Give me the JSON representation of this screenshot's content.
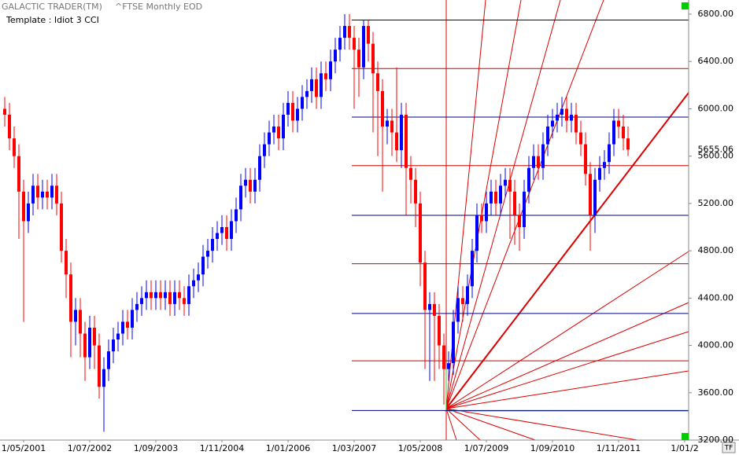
{
  "chart_data": {
    "type": "candlestick",
    "title": "GALACTIC TRADER(TM)",
    "subtitle": "^FTSE Monthly EOD",
    "template": "Template : Idiot 3 CCI",
    "button": "TF",
    "last_price": 5655.06,
    "up_color": "#0000ff",
    "down_color": "#ff0000",
    "ylim": [
      3200,
      6800
    ],
    "yticks": [
      {
        "value": 3200,
        "label": "3200.00"
      },
      {
        "value": 3600,
        "label": "3600.00"
      },
      {
        "value": 4000,
        "label": "4000.00"
      },
      {
        "value": 4400,
        "label": "4400.00"
      },
      {
        "value": 4800,
        "label": "4800.00"
      },
      {
        "value": 5200,
        "label": "5200.00"
      },
      {
        "value": 5600,
        "label": "5600.00"
      },
      {
        "value": 6000,
        "label": "6000.00"
      },
      {
        "value": 6400,
        "label": "6400.00"
      },
      {
        "value": 6800,
        "label": "6800.00"
      }
    ],
    "xticks": [
      {
        "value": 5,
        "label": "1/05/2001"
      },
      {
        "value": 19,
        "label": "1/07/2002"
      },
      {
        "value": 33,
        "label": "1/09/2003"
      },
      {
        "value": 47,
        "label": "1/11/2004"
      },
      {
        "value": 61,
        "label": "1/01/2006"
      },
      {
        "value": 75,
        "label": "1/03/2007"
      },
      {
        "value": 89,
        "label": "1/05/2008"
      },
      {
        "value": 103,
        "label": "1/07/2009"
      },
      {
        "value": 117,
        "label": "1/09/2010"
      },
      {
        "value": 131,
        "label": "1/11/2011"
      },
      {
        "value": 145,
        "label": "1/01/2"
      }
    ],
    "levels": [
      {
        "value": 6750,
        "color": "#000080"
      },
      {
        "value": 6340,
        "color": "#cc0000"
      },
      {
        "value": 5930,
        "color": "#000080"
      },
      {
        "value": 5520,
        "color": "#cc0000"
      },
      {
        "value": 5100,
        "color": "#000080"
      },
      {
        "value": 4690,
        "color": "#cc0000"
      },
      {
        "value": 4270,
        "color": "#000080"
      },
      {
        "value": 3870,
        "color": "#cc0000"
      },
      {
        "value": 3450,
        "color": "#000080"
      }
    ],
    "open": [
      6000,
      5950,
      5750,
      5600,
      5300,
      5050,
      5200,
      5350,
      5250,
      5300,
      5250,
      5350,
      5200,
      4800,
      4600,
      4200,
      4300,
      4100,
      3900,
      4150,
      4000,
      3650,
      3800,
      3950,
      4050,
      4100,
      4200,
      4150,
      4300,
      4350,
      4400,
      4450,
      4400,
      4450,
      4400,
      4450,
      4350,
      4450,
      4400,
      4350,
      4500,
      4550,
      4600,
      4750,
      4800,
      4900,
      4950,
      5000,
      4900,
      5050,
      5150,
      5350,
      5400,
      5300,
      5400,
      5600,
      5700,
      5800,
      5850,
      5750,
      5950,
      6050,
      5900,
      6000,
      6100,
      6150,
      6250,
      6100,
      6300,
      6250,
      6400,
      6500,
      6600,
      6700,
      6600,
      6500,
      6350,
      6700,
      6550,
      6300,
      6150,
      5850,
      5900,
      5800,
      5650,
      5950,
      5500,
      5400,
      5200,
      4700,
      4300,
      4350,
      4250,
      4000,
      3800,
      3850,
      4200,
      4400,
      4350,
      4500,
      4800,
      5100,
      5050,
      5200,
      5300,
      5200,
      5350,
      5400,
      5300,
      5100,
      5000,
      5300,
      5500,
      5600,
      5500,
      5700,
      5850,
      5900,
      5950,
      6000,
      5900,
      5950,
      5800,
      5700,
      5450,
      5100,
      5400,
      5500,
      5550,
      5700,
      5900,
      5850,
      5750
    ],
    "high": [
      6100,
      6050,
      5850,
      5700,
      5400,
      5300,
      5450,
      5450,
      5400,
      5400,
      5450,
      5450,
      5300,
      4900,
      4700,
      4400,
      4400,
      4200,
      4250,
      4250,
      4100,
      3900,
      4050,
      4150,
      4200,
      4300,
      4300,
      4400,
      4450,
      4500,
      4550,
      4550,
      4550,
      4550,
      4550,
      4550,
      4550,
      4550,
      4500,
      4600,
      4650,
      4700,
      4850,
      4900,
      5000,
      5050,
      5100,
      5100,
      5150,
      5250,
      5450,
      5500,
      5500,
      5500,
      5700,
      5800,
      5900,
      5950,
      5950,
      6050,
      6150,
      6150,
      6100,
      6200,
      6250,
      6350,
      6350,
      6400,
      6400,
      6500,
      6600,
      6700,
      6800,
      6800,
      6700,
      6600,
      6750,
      6750,
      6650,
      6400,
      6250,
      6000,
      6000,
      6350,
      6050,
      6050,
      5600,
      5500,
      5300,
      4800,
      4450,
      4450,
      4350,
      4100,
      3950,
      4300,
      4500,
      4500,
      4600,
      4900,
      5200,
      5200,
      5300,
      5400,
      5400,
      5450,
      5500,
      5500,
      5400,
      5200,
      5400,
      5600,
      5700,
      5700,
      5800,
      5950,
      6000,
      6050,
      6100,
      6100,
      6050,
      6050,
      5900,
      5800,
      5550,
      5500,
      5600,
      5650,
      5800,
      6000,
      6000,
      5950,
      5850
    ],
    "low": [
      5850,
      5650,
      5500,
      4900,
      4200,
      4950,
      5100,
      5150,
      5150,
      5150,
      5150,
      5100,
      4700,
      4400,
      3900,
      4000,
      3900,
      3700,
      3800,
      3800,
      3550,
      3270,
      3700,
      3850,
      3950,
      4000,
      4050,
      4050,
      4200,
      4250,
      4300,
      4300,
      4300,
      4300,
      4300,
      4250,
      4250,
      4300,
      4250,
      4250,
      4400,
      4450,
      4500,
      4650,
      4700,
      4800,
      4850,
      4800,
      4800,
      4950,
      5050,
      5250,
      5200,
      5200,
      5300,
      5500,
      5600,
      5700,
      5650,
      5650,
      5850,
      5800,
      5800,
      5900,
      6000,
      6050,
      6000,
      6000,
      6150,
      6150,
      6300,
      6400,
      6500,
      6500,
      6000,
      6100,
      6250,
      6400,
      5800,
      5600,
      5300,
      5700,
      5600,
      5550,
      5500,
      5100,
      5200,
      5000,
      4500,
      3800,
      3700,
      3700,
      3800,
      3500,
      3700,
      3750,
      4100,
      4200,
      4250,
      4400,
      4700,
      4950,
      4950,
      5100,
      5100,
      5100,
      5250,
      4900,
      4850,
      4800,
      4900,
      5200,
      5400,
      5400,
      5400,
      5600,
      5750,
      5800,
      5850,
      5800,
      5800,
      5700,
      5600,
      5350,
      4800,
      4950,
      5300,
      5400,
      5450,
      5600,
      5750,
      5650,
      5600
    ],
    "close": [
      5950,
      5750,
      5600,
      5300,
      5050,
      5200,
      5350,
      5250,
      5300,
      5250,
      5350,
      5200,
      4800,
      4600,
      4200,
      4300,
      4100,
      3900,
      4150,
      4000,
      3650,
      3800,
      3950,
      4050,
      4100,
      4200,
      4150,
      4300,
      4350,
      4400,
      4450,
      4400,
      4450,
      4400,
      4450,
      4350,
      4450,
      4400,
      4350,
      4500,
      4550,
      4600,
      4750,
      4800,
      4900,
      4950,
      5000,
      4900,
      5050,
      5150,
      5350,
      5400,
      5300,
      5400,
      5600,
      5700,
      5800,
      5850,
      5750,
      5950,
      6050,
      5900,
      6000,
      6100,
      6150,
      6250,
      6100,
      6300,
      6250,
      6400,
      6500,
      6600,
      6700,
      6600,
      6500,
      6350,
      6700,
      6550,
      6300,
      6150,
      5850,
      5900,
      5800,
      5650,
      5950,
      5500,
      5400,
      5200,
      4700,
      4300,
      4350,
      4250,
      4000,
      3800,
      3850,
      4200,
      4400,
      4350,
      4500,
      4800,
      5100,
      5050,
      5200,
      5300,
      5200,
      5350,
      5400,
      5300,
      5100,
      5000,
      5300,
      5500,
      5600,
      5500,
      5700,
      5850,
      5900,
      5950,
      6000,
      5900,
      5950,
      5800,
      5700,
      5450,
      5100,
      5400,
      5500,
      5550,
      5700,
      5900,
      5850,
      5750,
      5655
    ]
  }
}
